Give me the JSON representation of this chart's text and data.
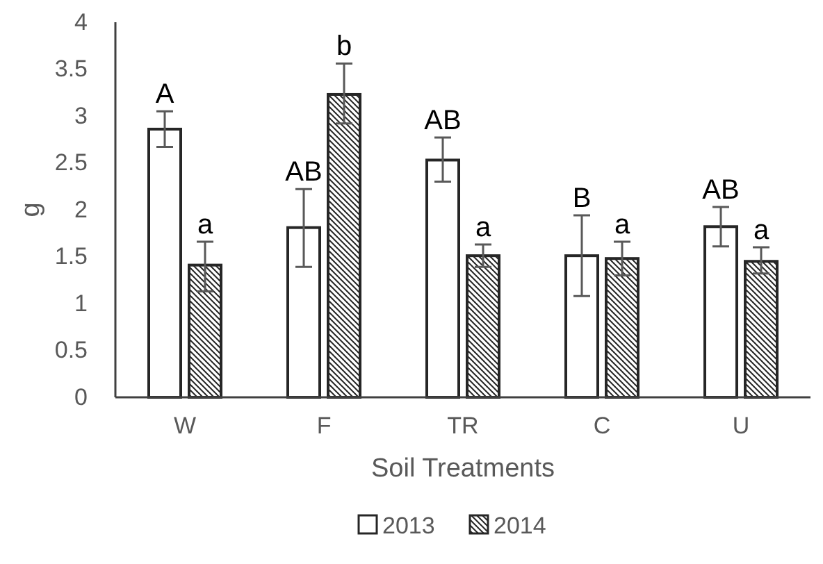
{
  "chart_data": {
    "type": "bar",
    "xlabel": "Soil Treatments",
    "ylabel": "g",
    "categories": [
      "W",
      "F",
      "TR",
      "C",
      "U"
    ],
    "ylim": [
      0,
      4
    ],
    "yticks": [
      0,
      {
        "value": 0.5,
        "label": "0.5"
      },
      1,
      {
        "value": 1.5,
        "label": "1.5"
      },
      2,
      {
        "value": 2.5,
        "label": "2.5"
      },
      3,
      {
        "value": 3.5,
        "label": "3.5"
      },
      4
    ],
    "legend": "bottom",
    "grid": false,
    "series": [
      {
        "name": "2013",
        "color": "#ffffff",
        "values": [
          2.86,
          1.81,
          2.53,
          1.51,
          1.82
        ],
        "errors": [
          [
            2.67,
            3.05
          ],
          [
            1.39,
            2.22
          ],
          [
            2.3,
            2.77
          ],
          [
            1.08,
            1.94
          ],
          [
            1.61,
            2.03
          ]
        ]
      },
      {
        "name": "2014",
        "color": "#262626",
        "values": [
          1.41,
          3.23,
          1.51,
          1.48,
          1.45
        ],
        "errors": [
          [
            1.13,
            1.66
          ],
          [
            2.92,
            3.56
          ],
          [
            1.39,
            1.63
          ],
          [
            1.3,
            1.66
          ],
          [
            1.32,
            1.6
          ]
        ]
      }
    ],
    "annotations": [
      "A",
      "a",
      "AB",
      "b",
      "AB",
      "a",
      "B",
      "a",
      "AB",
      "a"
    ]
  }
}
